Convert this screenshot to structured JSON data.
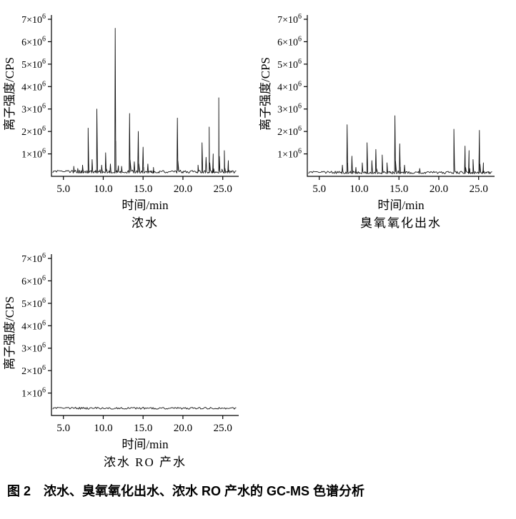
{
  "caption": "图 2　浓水、臭氧氧化出水、浓水 RO 产水的 GC-MS 色谱分析",
  "line_color": "#141414",
  "axis_color": "#000000",
  "chart_data": [
    {
      "type": "line",
      "title": "浓水",
      "xlabel": "时间/min",
      "ylabel": "离子强度/CPS",
      "xlim": [
        3.5,
        27.0
      ],
      "ylim": [
        0,
        7350000
      ],
      "xticks": [
        5.0,
        10.0,
        15.0,
        20.0,
        25.0
      ],
      "yticks": [
        1000000,
        2000000,
        3000000,
        4000000,
        5000000,
        6000000,
        7000000
      ],
      "ytick_labels": [
        "1×10^6",
        "2×10^6",
        "3×10^6",
        "4×10^6",
        "5×10^6",
        "6×10^6",
        "7×10^6"
      ],
      "grid": false,
      "legend": null,
      "baseline": 150000,
      "noise": 120000,
      "peaks": [
        {
          "x": 6.3,
          "y": 450000
        },
        {
          "x": 6.8,
          "y": 350000
        },
        {
          "x": 7.4,
          "y": 500000
        },
        {
          "x": 8.1,
          "y": 2150000
        },
        {
          "x": 8.6,
          "y": 750000
        },
        {
          "x": 9.2,
          "y": 3000000
        },
        {
          "x": 9.8,
          "y": 500000
        },
        {
          "x": 10.3,
          "y": 1050000
        },
        {
          "x": 10.9,
          "y": 550000
        },
        {
          "x": 11.5,
          "y": 6600000
        },
        {
          "x": 12.3,
          "y": 450000
        },
        {
          "x": 13.3,
          "y": 2800000
        },
        {
          "x": 13.9,
          "y": 650000
        },
        {
          "x": 14.4,
          "y": 2000000
        },
        {
          "x": 15.0,
          "y": 1300000
        },
        {
          "x": 15.6,
          "y": 550000
        },
        {
          "x": 16.3,
          "y": 400000
        },
        {
          "x": 19.3,
          "y": 2600000
        },
        {
          "x": 21.9,
          "y": 500000
        },
        {
          "x": 22.4,
          "y": 1500000
        },
        {
          "x": 22.9,
          "y": 850000
        },
        {
          "x": 23.3,
          "y": 2200000
        },
        {
          "x": 23.8,
          "y": 1000000
        },
        {
          "x": 24.5,
          "y": 3500000
        },
        {
          "x": 25.2,
          "y": 1150000
        },
        {
          "x": 25.7,
          "y": 700000
        }
      ]
    },
    {
      "type": "line",
      "title": "臭氧氧化出水",
      "xlabel": "时间/min",
      "ylabel": "离子强度/CPS",
      "xlim": [
        3.5,
        27.0
      ],
      "ylim": [
        0,
        7350000
      ],
      "xticks": [
        5.0,
        10.0,
        15.0,
        20.0,
        25.0
      ],
      "yticks": [
        1000000,
        2000000,
        3000000,
        4000000,
        5000000,
        6000000,
        7000000
      ],
      "ytick_labels": [
        "1×10^6",
        "2×10^6",
        "3×10^6",
        "4×10^6",
        "5×10^6",
        "6×10^6",
        "7×10^6"
      ],
      "grid": false,
      "legend": null,
      "baseline": 120000,
      "noise": 110000,
      "peaks": [
        {
          "x": 7.9,
          "y": 500000
        },
        {
          "x": 8.5,
          "y": 2300000
        },
        {
          "x": 9.1,
          "y": 900000
        },
        {
          "x": 9.6,
          "y": 400000
        },
        {
          "x": 10.4,
          "y": 600000
        },
        {
          "x": 11.0,
          "y": 1500000
        },
        {
          "x": 11.6,
          "y": 700000
        },
        {
          "x": 12.1,
          "y": 1200000
        },
        {
          "x": 12.9,
          "y": 950000
        },
        {
          "x": 13.5,
          "y": 600000
        },
        {
          "x": 14.5,
          "y": 2700000
        },
        {
          "x": 15.1,
          "y": 1450000
        },
        {
          "x": 15.7,
          "y": 500000
        },
        {
          "x": 17.6,
          "y": 350000
        },
        {
          "x": 21.9,
          "y": 2100000
        },
        {
          "x": 23.3,
          "y": 1350000
        },
        {
          "x": 23.8,
          "y": 1150000
        },
        {
          "x": 24.3,
          "y": 750000
        },
        {
          "x": 25.1,
          "y": 2050000
        },
        {
          "x": 25.6,
          "y": 600000
        }
      ]
    },
    {
      "type": "line",
      "title": "浓水 RO 产水",
      "xlabel": "时间/min",
      "ylabel": "离子强度/CPS",
      "xlim": [
        3.5,
        27.0
      ],
      "ylim": [
        0,
        7350000
      ],
      "xticks": [
        5.0,
        10.0,
        15.0,
        20.0,
        25.0
      ],
      "yticks": [
        1000000,
        2000000,
        3000000,
        4000000,
        5000000,
        6000000,
        7000000
      ],
      "ytick_labels": [
        "1×10^6",
        "2×10^6",
        "3×10^6",
        "4×10^6",
        "5×10^6",
        "6×10^6",
        "7×10^6"
      ],
      "grid": false,
      "legend": null,
      "baseline": 280000,
      "noise": 90000,
      "peaks": []
    }
  ]
}
